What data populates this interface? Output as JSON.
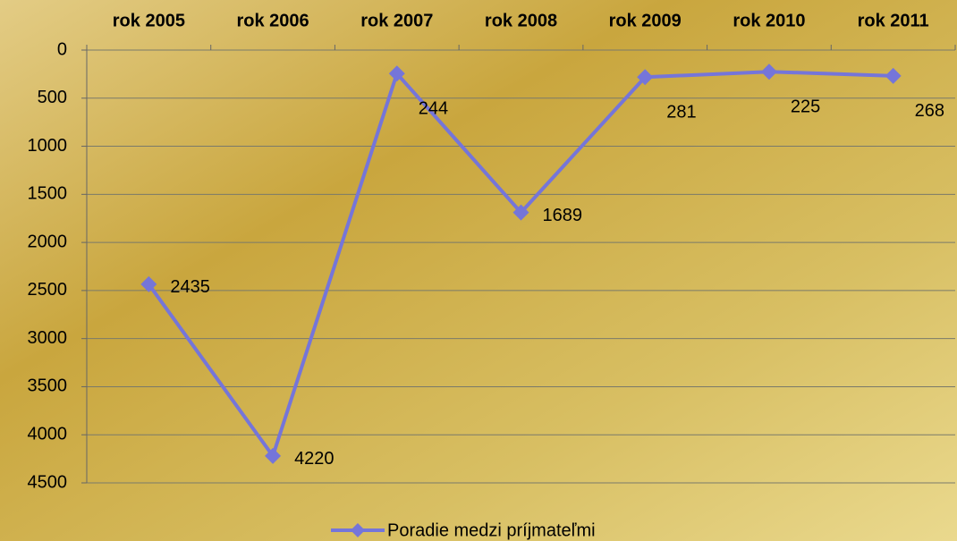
{
  "chart_data": {
    "type": "line",
    "categories": [
      "rok 2005",
      "rok 2006",
      "rok 2007",
      "rok 2008",
      "rok 2009",
      "rok 2010",
      "rok 2011"
    ],
    "series": [
      {
        "name": "Poradie medzi príjmateľmi",
        "color": "#7575d9",
        "values": [
          2435,
          4220,
          244,
          1689,
          281,
          225,
          268
        ]
      }
    ],
    "ylim": [
      0,
      4500
    ],
    "yticks": [
      0,
      500,
      1000,
      1500,
      2000,
      2500,
      3000,
      3500,
      4000,
      4500
    ],
    "y_inverted": true,
    "x_axis_position": "top",
    "grid": true,
    "legend": "bottom"
  }
}
